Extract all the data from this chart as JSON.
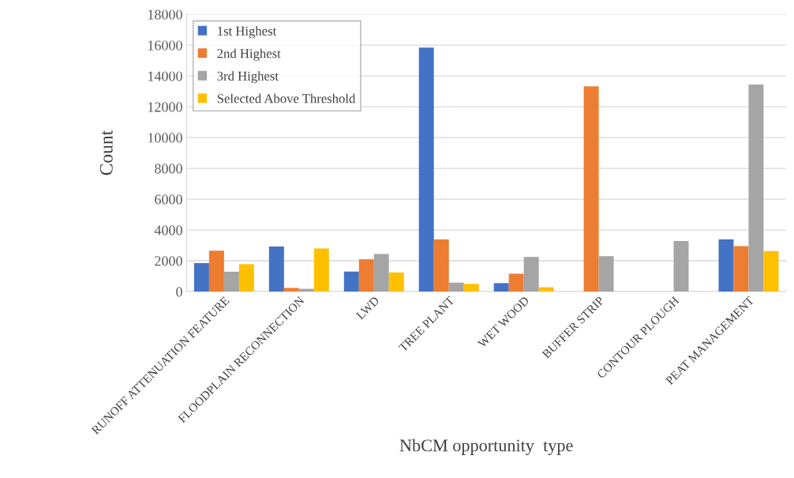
{
  "chart_data": {
    "type": "bar",
    "xlabel": "NbCM opportunity  type",
    "ylabel": "Count",
    "categories": [
      "RUNOFF ATTENUATION FEATURE",
      "FLOODPLAIN RECONNECTION",
      "LWD",
      "TREE PLANT",
      "WET WOOD",
      "BUFFER STRIP",
      "CONTOUR PLOUGH",
      "PEAT MANAGEMENT"
    ],
    "series": [
      {
        "name": "1st Highest",
        "color": "#4472c4",
        "values": [
          1850,
          2930,
          1300,
          15840,
          550,
          0,
          0,
          3390
        ]
      },
      {
        "name": "2nd Highest",
        "color": "#ed7d31",
        "values": [
          2660,
          240,
          2100,
          3390,
          1160,
          13330,
          0,
          2950
        ]
      },
      {
        "name": "3rd Highest",
        "color": "#a5a5a5",
        "values": [
          1290,
          180,
          2440,
          580,
          2250,
          2300,
          3290,
          13440
        ]
      },
      {
        "name": "Selected Above Threshold",
        "color": "#ffc000",
        "values": [
          1780,
          2800,
          1240,
          500,
          280,
          0,
          0,
          2630
        ]
      }
    ],
    "ylim": [
      0,
      18000
    ],
    "yticks": [
      0,
      2000,
      4000,
      6000,
      8000,
      10000,
      12000,
      14000,
      16000,
      18000
    ],
    "grid": "y",
    "legend": "top left"
  }
}
